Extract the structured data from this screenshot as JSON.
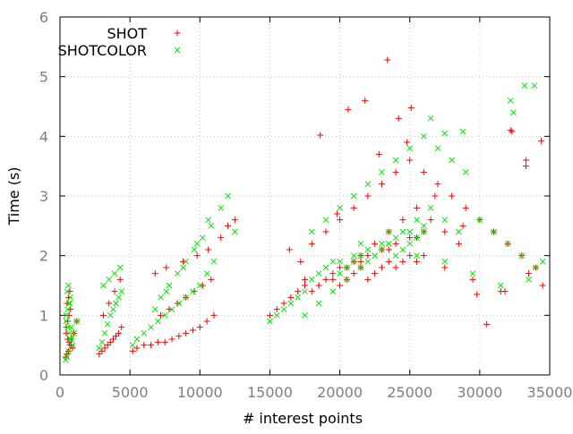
{
  "chart_data": {
    "type": "scatter",
    "title": "",
    "xlabel": "# interest points",
    "ylabel": "Time (s)",
    "xlim": [
      0,
      35000
    ],
    "ylim": [
      0,
      6
    ],
    "x_ticks": [
      0,
      5000,
      10000,
      15000,
      20000,
      25000,
      30000,
      35000
    ],
    "y_ticks": [
      0,
      1,
      2,
      3,
      4,
      5,
      6
    ],
    "x_tick_labels": [
      "0",
      "5000",
      "10000",
      "15000",
      "20000",
      "25000",
      "30000",
      "35000"
    ],
    "y_tick_labels": [
      "0",
      "1",
      "2",
      "3",
      "4",
      "5",
      "6"
    ],
    "grid": true,
    "legend_position": "top-left",
    "series": [
      {
        "name": "SHOT",
        "marker": "plus",
        "color": "#ff0000",
        "x": [
          400,
          500,
          600,
          700,
          800,
          450,
          550,
          650,
          750,
          500,
          600,
          700,
          450,
          550,
          650,
          800,
          900,
          1000,
          1200,
          2800,
          3000,
          3200,
          3400,
          3600,
          3800,
          4000,
          4200,
          4400,
          3100,
          3500,
          3900,
          4300,
          5200,
          5500,
          6000,
          6500,
          7000,
          7500,
          8000,
          8500,
          9000,
          9500,
          10000,
          10500,
          11000,
          7200,
          7800,
          8400,
          9000,
          9600,
          10200,
          10800,
          6800,
          7600,
          8800,
          9800,
          10600,
          11500,
          12000,
          12500,
          15000,
          15500,
          16000,
          16500,
          17000,
          17500,
          18000,
          18500,
          19000,
          19500,
          20000,
          20500,
          21000,
          21500,
          22000,
          22500,
          23000,
          23500,
          24000,
          24500,
          25000,
          25500,
          26000,
          18000,
          19000,
          20000,
          21000,
          22000,
          23000,
          24000,
          25000,
          26000,
          27000,
          28000,
          29000,
          30000,
          31000,
          32000,
          33000,
          34000,
          17500,
          18500,
          19500,
          20500,
          21500,
          22500,
          23500,
          24500,
          25500,
          26500,
          27500,
          28500,
          20000,
          21000,
          22000,
          23000,
          24000,
          25000,
          26000,
          21500,
          23500,
          25500,
          27500,
          29500,
          31500,
          33500,
          34500,
          20600,
          21800,
          23400,
          24200,
          25100,
          18600,
          16400,
          17200,
          19800,
          22800,
          24800,
          26800,
          28800,
          30500,
          32200,
          33300
        ],
        "y": [
          0.3,
          0.35,
          0.4,
          0.5,
          0.6,
          0.8,
          0.9,
          1.0,
          1.1,
          1.2,
          1.3,
          1.4,
          0.7,
          0.6,
          0.55,
          0.5,
          0.45,
          0.7,
          0.9,
          0.35,
          0.4,
          0.45,
          0.5,
          0.55,
          0.6,
          0.65,
          0.7,
          0.8,
          1.0,
          1.2,
          1.4,
          1.6,
          0.4,
          0.45,
          0.5,
          0.5,
          0.55,
          0.55,
          0.6,
          0.65,
          0.7,
          0.75,
          0.8,
          0.9,
          1.0,
          1.0,
          1.1,
          1.2,
          1.3,
          1.4,
          1.5,
          1.6,
          1.7,
          1.8,
          1.9,
          2.0,
          2.1,
          2.3,
          2.5,
          2.6,
          1.0,
          1.1,
          1.2,
          1.3,
          1.4,
          1.5,
          1.4,
          1.5,
          1.6,
          1.7,
          1.5,
          1.6,
          1.7,
          1.8,
          1.6,
          1.7,
          1.8,
          1.9,
          1.8,
          1.9,
          2.0,
          1.9,
          2.0,
          2.2,
          2.4,
          2.6,
          2.8,
          3.0,
          3.2,
          3.4,
          3.6,
          3.4,
          3.2,
          3.0,
          2.8,
          2.6,
          2.4,
          2.2,
          2.0,
          1.8,
          1.6,
          1.5,
          1.6,
          1.8,
          2.0,
          2.2,
          2.4,
          2.6,
          2.8,
          2.6,
          2.4,
          2.2,
          1.8,
          1.9,
          2.0,
          2.1,
          2.2,
          2.3,
          2.4,
          1.9,
          2.1,
          2.3,
          1.8,
          1.6,
          1.4,
          1.7,
          1.5,
          4.45,
          4.6,
          5.28,
          4.3,
          4.48,
          4.02,
          2.1,
          1.9,
          2.7,
          3.7,
          3.9,
          3.0,
          2.5,
          0.85,
          4.1,
          3.6
        ],
        "x_extra": [
          34400,
          33300,
          32300,
          31800,
          29800
        ],
        "y_extra": [
          3.92,
          3.5,
          4.08,
          1.4,
          1.35
        ]
      },
      {
        "name": "SHOTCOLOR",
        "marker": "cross",
        "color": "#00e600",
        "x": [
          400,
          500,
          600,
          700,
          800,
          450,
          550,
          650,
          750,
          500,
          600,
          700,
          450,
          550,
          650,
          800,
          900,
          1000,
          1200,
          2800,
          3000,
          3200,
          3400,
          3600,
          3800,
          4000,
          4200,
          4400,
          3100,
          3500,
          3900,
          4300,
          5200,
          5500,
          6000,
          6500,
          7000,
          7500,
          8000,
          8500,
          9000,
          9500,
          10000,
          10500,
          11000,
          7200,
          7800,
          8400,
          9000,
          9600,
          10200,
          10800,
          6800,
          7600,
          8800,
          9800,
          10600,
          11500,
          12000,
          12500,
          15000,
          15500,
          16000,
          16500,
          17000,
          17500,
          18000,
          18500,
          19000,
          19500,
          20000,
          20500,
          21000,
          21500,
          22000,
          22500,
          23000,
          23500,
          24000,
          24500,
          25000,
          25500,
          26000,
          18000,
          19000,
          20000,
          21000,
          22000,
          23000,
          24000,
          25000,
          26000,
          27000,
          28000,
          29000,
          30000,
          31000,
          32000,
          33000,
          34000,
          17500,
          18500,
          19500,
          20500,
          21500,
          22500,
          23500,
          24500,
          25500,
          26500,
          27500,
          28500,
          20000,
          21000,
          22000,
          23000,
          24000,
          25000,
          26000,
          21500,
          23500,
          25500,
          27500,
          29500,
          31500,
          33500,
          34500,
          26500,
          27500,
          28800,
          32200,
          33200,
          33900,
          32400
        ],
        "y": [
          0.25,
          0.3,
          0.4,
          0.6,
          0.8,
          1.0,
          1.1,
          1.2,
          1.3,
          1.4,
          1.5,
          1.2,
          0.9,
          0.8,
          0.7,
          0.6,
          0.5,
          0.7,
          0.9,
          0.45,
          0.55,
          0.7,
          0.85,
          1.0,
          1.1,
          1.2,
          1.3,
          1.4,
          1.5,
          1.6,
          1.7,
          1.8,
          0.5,
          0.6,
          0.7,
          0.8,
          0.9,
          1.0,
          1.1,
          1.2,
          1.3,
          1.4,
          1.5,
          1.7,
          1.9,
          1.3,
          1.5,
          1.7,
          1.9,
          2.1,
          2.3,
          2.5,
          1.1,
          1.4,
          1.8,
          2.2,
          2.6,
          2.8,
          3.0,
          2.4,
          0.9,
          1.0,
          1.1,
          1.2,
          1.3,
          1.4,
          1.6,
          1.7,
          1.8,
          1.9,
          1.7,
          1.8,
          1.9,
          2.0,
          1.9,
          2.0,
          2.1,
          2.2,
          2.0,
          2.1,
          2.2,
          2.3,
          2.4,
          2.4,
          2.6,
          2.8,
          3.0,
          3.2,
          3.4,
          3.6,
          3.8,
          4.0,
          3.8,
          3.6,
          3.4,
          2.6,
          2.4,
          2.2,
          2.0,
          1.8,
          1.0,
          1.2,
          1.4,
          1.6,
          1.8,
          2.0,
          2.2,
          2.4,
          2.6,
          2.8,
          2.6,
          2.4,
          1.9,
          2.0,
          2.1,
          2.2,
          2.3,
          2.4,
          2.5,
          2.2,
          2.4,
          2.0,
          1.9,
          1.7,
          1.5,
          1.6,
          1.9,
          4.3,
          4.05,
          4.08,
          4.6,
          4.85,
          4.85,
          4.4
        ],
        "x_extra": [],
        "y_extra": []
      }
    ]
  }
}
